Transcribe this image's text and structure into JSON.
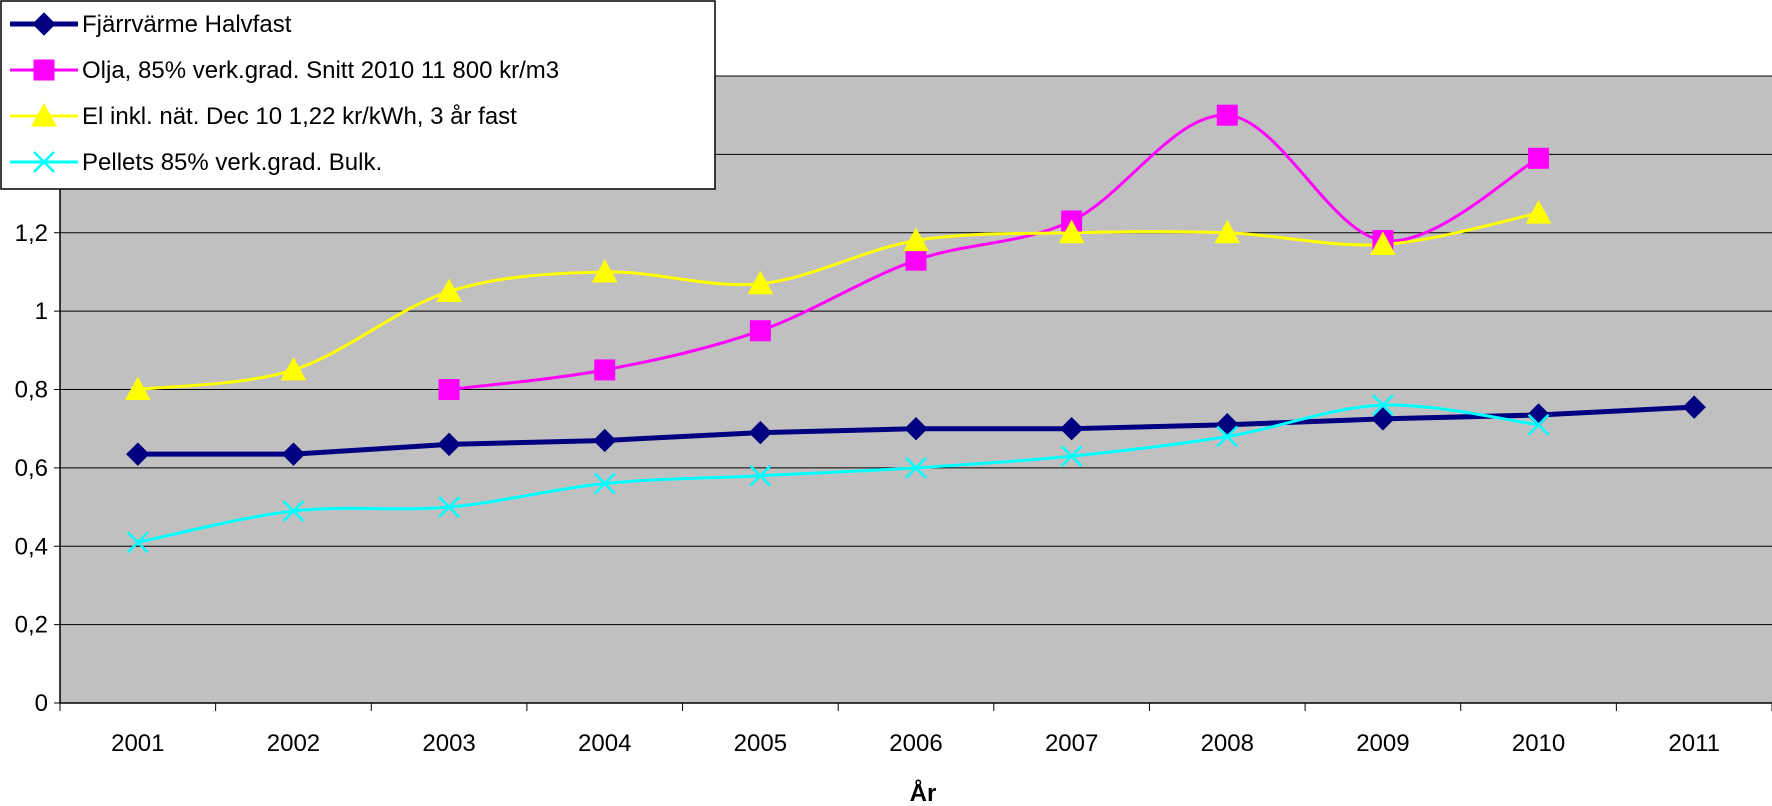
{
  "chart_data": {
    "type": "line",
    "title": "",
    "xlabel": "År",
    "ylabel": "",
    "categories": [
      "2001",
      "2002",
      "2003",
      "2004",
      "2005",
      "2006",
      "2007",
      "2008",
      "2009",
      "2010",
      "2011"
    ],
    "ylim": [
      0,
      1.6
    ],
    "yticks": [
      {
        "value": 0,
        "label": "0"
      },
      {
        "value": 0.2,
        "label": "0,2"
      },
      {
        "value": 0.4,
        "label": "0,4"
      },
      {
        "value": 0.6,
        "label": "0,6"
      },
      {
        "value": 0.8,
        "label": "0,8"
      },
      {
        "value": 1.0,
        "label": "1"
      },
      {
        "value": 1.2,
        "label": "1,2"
      },
      {
        "value": 1.4,
        "label": "1,4"
      },
      {
        "value": 1.6,
        "label": "1,6"
      }
    ],
    "grid": true,
    "legend_position": "top-left",
    "plot_background": "#c0c0c0",
    "series": [
      {
        "name": "Fjärrvärme Halvfast",
        "color": "#000080",
        "marker": "diamond",
        "smooth": false,
        "width": 5,
        "values": [
          0.635,
          0.635,
          0.66,
          0.67,
          0.69,
          0.7,
          0.7,
          0.71,
          0.725,
          0.735,
          0.755
        ]
      },
      {
        "name": "Olja, 85% verk.grad. Snitt 2010 11 800 kr/m3",
        "color": "#ff00ff",
        "marker": "square",
        "smooth": true,
        "width": 3,
        "values": [
          null,
          null,
          0.8,
          0.85,
          0.95,
          1.13,
          1.23,
          1.5,
          1.18,
          1.39,
          null
        ]
      },
      {
        "name": "El inkl. nät. Dec 10 1,22 kr/kWh, 3 år fast",
        "color": "#ffff00",
        "marker": "triangle",
        "smooth": true,
        "width": 3,
        "values": [
          0.8,
          0.85,
          1.05,
          1.1,
          1.07,
          1.18,
          1.2,
          1.2,
          1.17,
          1.25,
          null
        ]
      },
      {
        "name": "Pellets 85% verk.grad. Bulk.",
        "color": "#00ffff",
        "marker": "x",
        "smooth": true,
        "width": 3,
        "values": [
          0.41,
          0.49,
          0.5,
          0.56,
          0.58,
          0.6,
          0.63,
          0.68,
          0.76,
          0.71,
          null
        ]
      }
    ]
  }
}
